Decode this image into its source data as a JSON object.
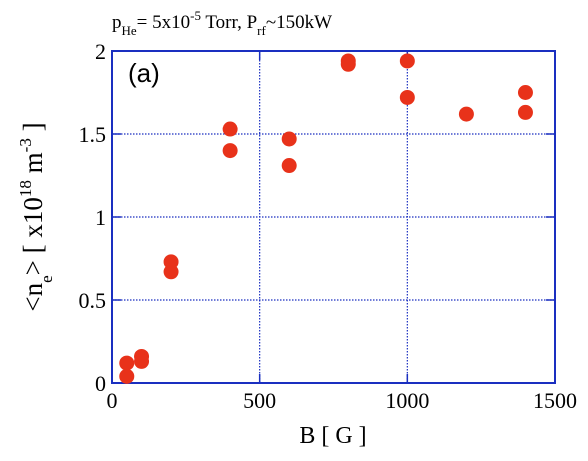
{
  "chart_data": {
    "type": "scatter",
    "title": [
      "p",
      "He",
      "= 5x10",
      "-5",
      " Torr, P",
      "rf",
      "~150kW"
    ],
    "annotation": "(a)",
    "x_label": "B [ G ]",
    "y_label": [
      "<n",
      "e",
      "> [ x10",
      "18",
      " m",
      "-3",
      " ]"
    ],
    "x": [
      50,
      50,
      100,
      100,
      200,
      200,
      400,
      400,
      600,
      600,
      800,
      800,
      1000,
      1000,
      1200,
      1400,
      1400
    ],
    "series": [
      {
        "color": "#e8321a",
        "values": [
          0.12,
          0.04,
          0.16,
          0.13,
          0.73,
          0.67,
          1.53,
          1.4,
          1.47,
          1.31,
          1.94,
          1.92,
          1.94,
          1.72,
          1.62,
          1.75,
          1.63
        ]
      }
    ],
    "xlim": [
      0,
      1500
    ],
    "xticks": [
      0,
      500,
      1000,
      1500
    ],
    "ylim": [
      0,
      2
    ],
    "yticks": [
      0,
      0.5,
      1,
      1.5,
      2
    ],
    "grid": true
  }
}
